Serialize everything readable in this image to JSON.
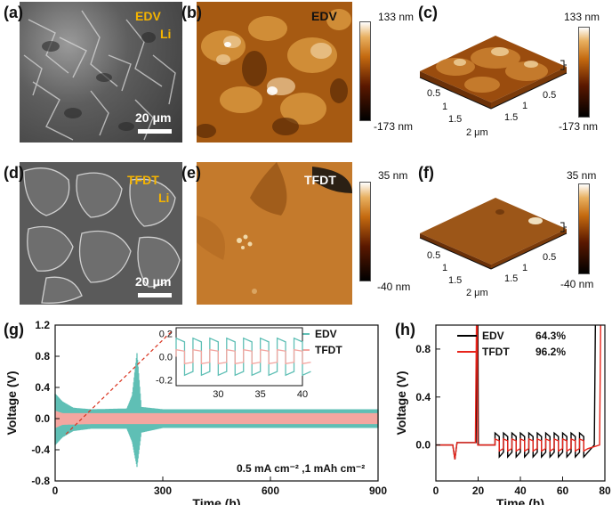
{
  "panels": {
    "a": {
      "label": "(a)",
      "tag1": "EDV",
      "tag2": "Li",
      "scale": "20 μm"
    },
    "b": {
      "label": "(b)",
      "tag": "EDV",
      "cbar_max": "133 nm",
      "cbar_min": "-173 nm"
    },
    "c": {
      "label": "(c)",
      "cbar_max": "133 nm",
      "cbar_min": "-173 nm",
      "axis_left": [
        "0.5",
        "1",
        "1.5",
        "2 μm"
      ],
      "axis_right": [
        "0.5",
        "1",
        "1.5"
      ]
    },
    "d": {
      "label": "(d)",
      "tag1": "TFDT",
      "tag2": "Li",
      "scale": "20 μm"
    },
    "e": {
      "label": "(e)",
      "tag": "TFDT",
      "cbar_max": "35 nm",
      "cbar_min": "-40 nm"
    },
    "f": {
      "label": "(f)",
      "cbar_max": "35 nm",
      "cbar_min": "-40 nm",
      "axis_left": [
        "0.5",
        "1",
        "1.5",
        "2 μm"
      ],
      "axis_right": [
        "0.5",
        "1",
        "1.5"
      ]
    },
    "g": {
      "label": "(g)",
      "annotation": "0.5 mA cm⁻² ,1 mAh cm⁻²"
    },
    "h": {
      "label": "(h)"
    }
  },
  "chart_data": [
    {
      "type": "line",
      "panel": "g",
      "xlabel": "Time (h)",
      "ylabel": "Voltage (V)",
      "xlim": [
        0,
        900
      ],
      "ylim": [
        -0.8,
        1.2
      ],
      "xticks": [
        "0",
        "300",
        "600",
        "900"
      ],
      "yticks": [
        "-0.8",
        "-0.4",
        "0.0",
        "0.4",
        "0.8",
        "1.2"
      ],
      "legend_position": "top-right",
      "series": [
        {
          "name": "EDV",
          "color": "#5fbfb5",
          "envelope": [
            [
              0,
              0.32,
              -0.34
            ],
            [
              20,
              0.22,
              -0.24
            ],
            [
              50,
              0.14,
              -0.16
            ],
            [
              100,
              0.12,
              -0.13
            ],
            [
              200,
              0.13,
              -0.13
            ],
            [
              215,
              0.3,
              -0.3
            ],
            [
              228,
              0.84,
              -0.62
            ],
            [
              240,
              0.15,
              -0.18
            ],
            [
              300,
              0.12,
              -0.12
            ],
            [
              600,
              0.12,
              -0.12
            ],
            [
              900,
              0.12,
              -0.12
            ]
          ]
        },
        {
          "name": "TFDT",
          "color": "#f4a6a0",
          "envelope": [
            [
              0,
              0.1,
              -0.12
            ],
            [
              20,
              0.07,
              -0.08
            ],
            [
              100,
              0.07,
              -0.07
            ],
            [
              900,
              0.07,
              -0.07
            ]
          ]
        }
      ],
      "inset": {
        "xlim": [
          25,
          40
        ],
        "ylim": [
          -0.25,
          0.25
        ],
        "xticks": [
          "30",
          "35",
          "40"
        ],
        "yticks": [
          "-0.2",
          "0.0",
          "0.2"
        ],
        "cycle_period": 2,
        "edv_amplitude": 0.16,
        "tfdt_amplitude": 0.06
      }
    },
    {
      "type": "line",
      "panel": "h",
      "xlabel": "Time (h)",
      "ylabel": "Voltage (V)",
      "xlim": [
        0,
        80
      ],
      "ylim": [
        -0.3,
        1.0
      ],
      "xticks": [
        "0",
        "20",
        "40",
        "60",
        "80"
      ],
      "yticks": [
        "0.0",
        "0.4",
        "0.8"
      ],
      "legend_position": "top-left",
      "series": [
        {
          "name": "EDV",
          "value_label": "64.3%",
          "color": "#000000",
          "spike_times": [
            19.5,
            75.5
          ]
        },
        {
          "name": "TFDT",
          "value_label": "96.2%",
          "color": "#e8241b",
          "spike_times": [
            19.2,
            78.0
          ]
        }
      ]
    }
  ]
}
